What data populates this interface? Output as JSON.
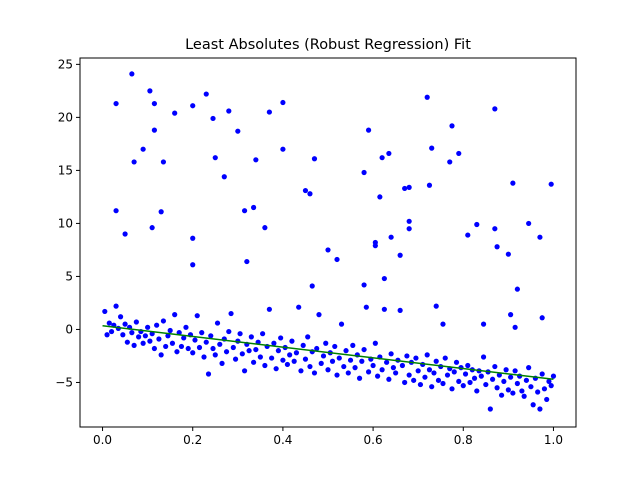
{
  "chart_data": {
    "type": "scatter",
    "title": "Least Absolutes (Robust Regression) Fit",
    "xlabel": "",
    "ylabel": "",
    "xlim": [
      -0.05,
      1.05
    ],
    "ylim": [
      -9.2,
      25.6
    ],
    "xticks": [
      0.0,
      0.2,
      0.4,
      0.6,
      0.8,
      1.0
    ],
    "xtick_labels": [
      "0.0",
      "0.2",
      "0.4",
      "0.6",
      "0.8",
      "1.0"
    ],
    "yticks": [
      -5,
      0,
      5,
      10,
      15,
      20,
      25
    ],
    "ytick_labels": [
      "−5",
      "0",
      "5",
      "10",
      "15",
      "20",
      "25"
    ],
    "grid": false,
    "fit_line": {
      "name": "",
      "x": [
        0.0,
        1.0
      ],
      "y": [
        0.35,
        -4.7
      ],
      "color": "#008000"
    },
    "point_color": "#0000ff",
    "series": [
      {
        "name": "",
        "points": [
          [
            0.03,
            21.3
          ],
          [
            0.03,
            11.2
          ],
          [
            0.05,
            9.0
          ],
          [
            0.065,
            24.1
          ],
          [
            0.07,
            15.8
          ],
          [
            0.09,
            17.0
          ],
          [
            0.105,
            22.5
          ],
          [
            0.11,
            9.6
          ],
          [
            0.115,
            21.3
          ],
          [
            0.115,
            18.8
          ],
          [
            0.13,
            11.1
          ],
          [
            0.135,
            15.8
          ],
          [
            0.16,
            20.4
          ],
          [
            0.2,
            21.1
          ],
          [
            0.2,
            8.6
          ],
          [
            0.2,
            6.1
          ],
          [
            0.23,
            22.2
          ],
          [
            0.245,
            19.9
          ],
          [
            0.25,
            16.2
          ],
          [
            0.27,
            14.4
          ],
          [
            0.28,
            20.6
          ],
          [
            0.3,
            18.7
          ],
          [
            0.315,
            11.2
          ],
          [
            0.32,
            6.4
          ],
          [
            0.335,
            11.5
          ],
          [
            0.34,
            16.0
          ],
          [
            0.36,
            9.6
          ],
          [
            0.37,
            20.5
          ],
          [
            0.4,
            21.4
          ],
          [
            0.4,
            17.0
          ],
          [
            0.45,
            13.1
          ],
          [
            0.46,
            12.8
          ],
          [
            0.47,
            16.1
          ],
          [
            0.465,
            4.1
          ],
          [
            0.5,
            7.5
          ],
          [
            0.52,
            6.6
          ],
          [
            0.58,
            14.8
          ],
          [
            0.58,
            4.2
          ],
          [
            0.59,
            18.8
          ],
          [
            0.605,
            8.2
          ],
          [
            0.605,
            7.9
          ],
          [
            0.615,
            12.5
          ],
          [
            0.62,
            16.2
          ],
          [
            0.625,
            4.8
          ],
          [
            0.635,
            16.6
          ],
          [
            0.64,
            8.7
          ],
          [
            0.66,
            7.0
          ],
          [
            0.67,
            13.3
          ],
          [
            0.68,
            13.4
          ],
          [
            0.68,
            10.2
          ],
          [
            0.68,
            9.5
          ],
          [
            0.72,
            21.9
          ],
          [
            0.725,
            13.6
          ],
          [
            0.73,
            17.1
          ],
          [
            0.77,
            15.8
          ],
          [
            0.775,
            19.2
          ],
          [
            0.79,
            16.6
          ],
          [
            0.81,
            8.9
          ],
          [
            0.83,
            9.9
          ],
          [
            0.87,
            20.8
          ],
          [
            0.87,
            9.5
          ],
          [
            0.875,
            7.8
          ],
          [
            0.9,
            7.1
          ],
          [
            0.91,
            13.8
          ],
          [
            0.92,
            3.8
          ],
          [
            0.945,
            10.0
          ],
          [
            0.97,
            8.7
          ],
          [
            0.995,
            13.7
          ],
          [
            0.74,
            2.2
          ],
          [
            0.755,
            0.5
          ],
          [
            0.845,
            0.5
          ],
          [
            0.905,
            1.4
          ],
          [
            0.915,
            0.2
          ],
          [
            0.975,
            1.1
          ],
          [
            0.005,
            1.7
          ],
          [
            0.01,
            -0.5
          ],
          [
            0.015,
            0.6
          ],
          [
            0.02,
            -0.2
          ],
          [
            0.025,
            0.4
          ],
          [
            0.03,
            2.2
          ],
          [
            0.035,
            0.1
          ],
          [
            0.04,
            1.2
          ],
          [
            0.045,
            -0.5
          ],
          [
            0.05,
            0.5
          ],
          [
            0.055,
            -1.2
          ],
          [
            0.06,
            0.2
          ],
          [
            0.065,
            -0.3
          ],
          [
            0.07,
            -1.5
          ],
          [
            0.075,
            0.7
          ],
          [
            0.08,
            -0.7
          ],
          [
            0.085,
            -0.2
          ],
          [
            0.09,
            -1.3
          ],
          [
            0.095,
            -0.6
          ],
          [
            0.1,
            0.2
          ],
          [
            0.105,
            -1.1
          ],
          [
            0.11,
            -0.4
          ],
          [
            0.115,
            -1.8
          ],
          [
            0.12,
            0.4
          ],
          [
            0.125,
            -0.9
          ],
          [
            0.13,
            -2.4
          ],
          [
            0.135,
            0.8
          ],
          [
            0.14,
            -1.6
          ],
          [
            0.145,
            -0.6
          ],
          [
            0.15,
            -0.1
          ],
          [
            0.155,
            -1.3
          ],
          [
            0.16,
            1.4
          ],
          [
            0.165,
            -2.1
          ],
          [
            0.17,
            -0.3
          ],
          [
            0.175,
            -1.6
          ],
          [
            0.18,
            -0.8
          ],
          [
            0.185,
            0.2
          ],
          [
            0.19,
            -1.8
          ],
          [
            0.195,
            -0.5
          ],
          [
            0.2,
            -2.2
          ],
          [
            0.205,
            -1.0
          ],
          [
            0.21,
            1.3
          ],
          [
            0.215,
            -1.7
          ],
          [
            0.22,
            -0.3
          ],
          [
            0.225,
            -2.6
          ],
          [
            0.23,
            -1.2
          ],
          [
            0.235,
            -4.2
          ],
          [
            0.24,
            -0.6
          ],
          [
            0.245,
            -1.8
          ],
          [
            0.25,
            -2.4
          ],
          [
            0.255,
            0.6
          ],
          [
            0.26,
            -1.4
          ],
          [
            0.265,
            -3.2
          ],
          [
            0.27,
            -0.9
          ],
          [
            0.275,
            -2.1
          ],
          [
            0.28,
            -0.2
          ],
          [
            0.285,
            1.5
          ],
          [
            0.29,
            -1.7
          ],
          [
            0.295,
            -2.8
          ],
          [
            0.3,
            -1.1
          ],
          [
            0.305,
            -0.4
          ],
          [
            0.31,
            -2.3
          ],
          [
            0.315,
            -3.9
          ],
          [
            0.32,
            -1.4
          ],
          [
            0.325,
            -2.0
          ],
          [
            0.33,
            -0.7
          ],
          [
            0.335,
            -3.1
          ],
          [
            0.34,
            -1.9
          ],
          [
            0.345,
            -1.2
          ],
          [
            0.35,
            -2.6
          ],
          [
            0.355,
            -0.4
          ],
          [
            0.36,
            -3.4
          ],
          [
            0.365,
            -1.6
          ],
          [
            0.37,
            1.9
          ],
          [
            0.375,
            -2.7
          ],
          [
            0.38,
            -1.3
          ],
          [
            0.385,
            -3.7
          ],
          [
            0.39,
            -2.0
          ],
          [
            0.395,
            -0.8
          ],
          [
            0.4,
            -2.9
          ],
          [
            0.405,
            -1.7
          ],
          [
            0.41,
            -3.3
          ],
          [
            0.415,
            -2.4
          ],
          [
            0.42,
            -1.1
          ],
          [
            0.425,
            -3.0
          ],
          [
            0.43,
            -2.2
          ],
          [
            0.435,
            2.1
          ],
          [
            0.44,
            -3.9
          ],
          [
            0.445,
            -1.5
          ],
          [
            0.45,
            -2.8
          ],
          [
            0.455,
            -0.7
          ],
          [
            0.46,
            -3.5
          ],
          [
            0.465,
            -2.1
          ],
          [
            0.47,
            -4.1
          ],
          [
            0.475,
            -1.8
          ],
          [
            0.48,
            1.4
          ],
          [
            0.485,
            -3.2
          ],
          [
            0.49,
            -2.5
          ],
          [
            0.495,
            -1.3
          ],
          [
            0.5,
            -3.8
          ],
          [
            0.505,
            -2.2
          ],
          [
            0.51,
            -3.0
          ],
          [
            0.515,
            -1.6
          ],
          [
            0.52,
            -4.3
          ],
          [
            0.525,
            -2.7
          ],
          [
            0.53,
            0.5
          ],
          [
            0.535,
            -3.5
          ],
          [
            0.54,
            -2.0
          ],
          [
            0.545,
            -4.1
          ],
          [
            0.55,
            -2.9
          ],
          [
            0.555,
            -1.5
          ],
          [
            0.56,
            -3.6
          ],
          [
            0.565,
            -2.4
          ],
          [
            0.57,
            -4.6
          ],
          [
            0.575,
            -3.0
          ],
          [
            0.58,
            -1.9
          ],
          [
            0.585,
            2.1
          ],
          [
            0.59,
            -4.0
          ],
          [
            0.595,
            -2.8
          ],
          [
            0.6,
            -3.4
          ],
          [
            0.605,
            -1.3
          ],
          [
            0.61,
            -4.4
          ],
          [
            0.615,
            -2.6
          ],
          [
            0.62,
            -3.8
          ],
          [
            0.625,
            1.9
          ],
          [
            0.63,
            -3.1
          ],
          [
            0.635,
            -4.7
          ],
          [
            0.64,
            -2.3
          ],
          [
            0.645,
            -3.6
          ],
          [
            0.65,
            -4.1
          ],
          [
            0.655,
            -2.9
          ],
          [
            0.66,
            1.8
          ],
          [
            0.665,
            -3.4
          ],
          [
            0.67,
            -5.0
          ],
          [
            0.675,
            -2.5
          ],
          [
            0.68,
            -4.3
          ],
          [
            0.685,
            -3.1
          ],
          [
            0.69,
            -4.8
          ],
          [
            0.695,
            -2.7
          ],
          [
            0.7,
            -3.9
          ],
          [
            0.705,
            -5.2
          ],
          [
            0.71,
            -3.3
          ],
          [
            0.715,
            -4.5
          ],
          [
            0.72,
            -2.4
          ],
          [
            0.725,
            -3.8
          ],
          [
            0.73,
            -5.4
          ],
          [
            0.735,
            -4.1
          ],
          [
            0.74,
            -3.0
          ],
          [
            0.745,
            -4.8
          ],
          [
            0.75,
            -3.5
          ],
          [
            0.755,
            -5.1
          ],
          [
            0.76,
            -2.7
          ],
          [
            0.765,
            -4.3
          ],
          [
            0.77,
            -3.7
          ],
          [
            0.775,
            -5.6
          ],
          [
            0.78,
            -4.0
          ],
          [
            0.785,
            -3.1
          ],
          [
            0.79,
            -4.9
          ],
          [
            0.795,
            -3.6
          ],
          [
            0.8,
            -5.3
          ],
          [
            0.805,
            -4.2
          ],
          [
            0.81,
            -3.4
          ],
          [
            0.815,
            -5.0
          ],
          [
            0.82,
            -3.8
          ],
          [
            0.825,
            -4.6
          ],
          [
            0.83,
            -5.8
          ],
          [
            0.835,
            -3.9
          ],
          [
            0.84,
            -4.4
          ],
          [
            0.845,
            -2.6
          ],
          [
            0.85,
            -5.2
          ],
          [
            0.855,
            -4.0
          ],
          [
            0.86,
            -7.5
          ],
          [
            0.865,
            -4.7
          ],
          [
            0.87,
            -3.5
          ],
          [
            0.875,
            -5.5
          ],
          [
            0.88,
            -4.3
          ],
          [
            0.885,
            -6.2
          ],
          [
            0.89,
            -4.9
          ],
          [
            0.895,
            -3.8
          ],
          [
            0.9,
            -5.7
          ],
          [
            0.905,
            -4.5
          ],
          [
            0.91,
            -6.0
          ],
          [
            0.915,
            -3.9
          ],
          [
            0.92,
            -5.1
          ],
          [
            0.925,
            -4.4
          ],
          [
            0.93,
            -5.8
          ],
          [
            0.935,
            -6.3
          ],
          [
            0.94,
            -4.8
          ],
          [
            0.945,
            -3.6
          ],
          [
            0.95,
            -5.4
          ],
          [
            0.955,
            -7.1
          ],
          [
            0.96,
            -4.6
          ],
          [
            0.965,
            -5.9
          ],
          [
            0.97,
            -7.5
          ],
          [
            0.975,
            -4.2
          ],
          [
            0.98,
            -5.6
          ],
          [
            0.985,
            -6.6
          ],
          [
            0.99,
            -4.9
          ],
          [
            0.995,
            -5.3
          ],
          [
            1.0,
            -4.4
          ]
        ]
      }
    ]
  }
}
